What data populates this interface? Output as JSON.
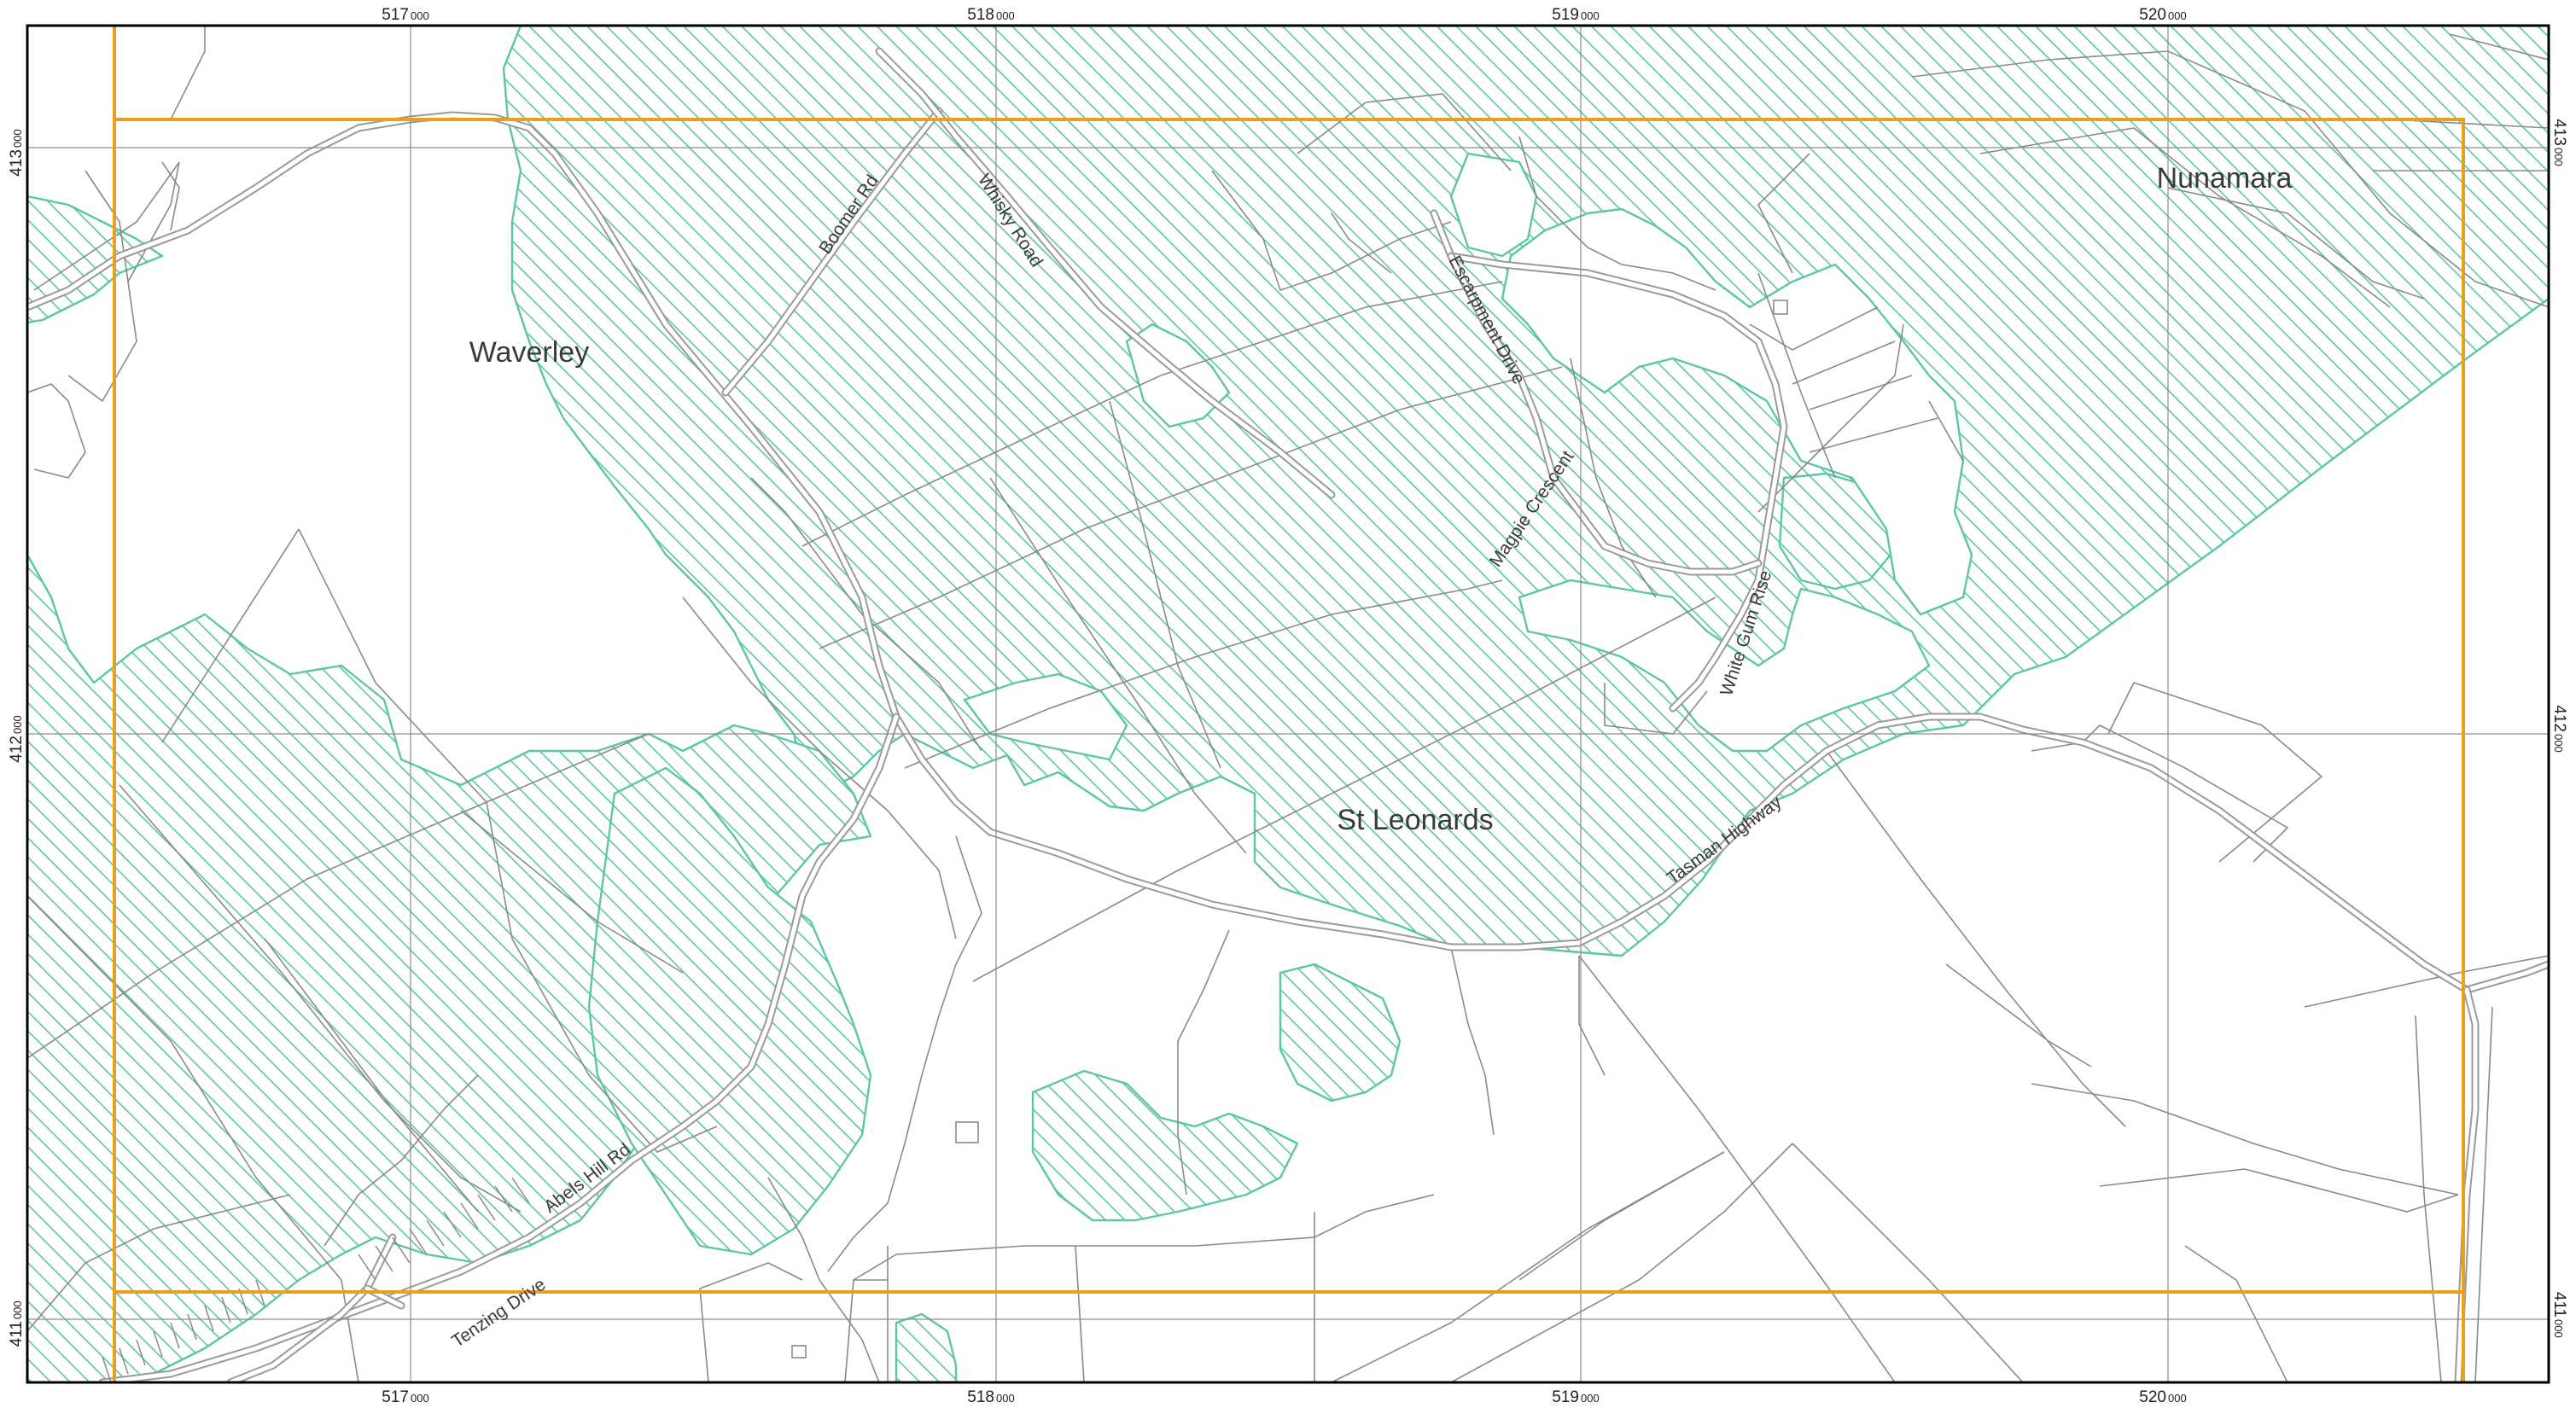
{
  "map": {
    "easting_labels": [
      {
        "major": "517",
        "minor": "000"
      },
      {
        "major": "518",
        "minor": "000"
      },
      {
        "major": "519",
        "minor": "000"
      },
      {
        "major": "520",
        "minor": "000"
      }
    ],
    "northing_labels": [
      {
        "major": "413",
        "minor": "000"
      },
      {
        "major": "412",
        "minor": "000"
      },
      {
        "major": "411",
        "minor": "000"
      }
    ],
    "place_names": {
      "waverley": "Waverley",
      "nunamara": "Nunamara",
      "st_leonards": "St Leonards"
    },
    "road_names": {
      "boomer_rd": "Boomer Rd",
      "whisky_road": "Whisky Road",
      "escarpment_drive": "Escarpment Drive",
      "magpie_crescent": "Magpie Crescent",
      "white_gum_rise": "White Gum Rise",
      "tasman_highway": "Tasman Highway",
      "abels_hill_rd": "Abels Hill Rd",
      "tenzing_drive": "Tenzing Drive"
    },
    "colors": {
      "vegetation_hatch": "#5cc6a8",
      "extent_outline": "#e8a020",
      "grid_line": "#8c8c8c",
      "parcel_line": "#8a8a8a"
    }
  }
}
